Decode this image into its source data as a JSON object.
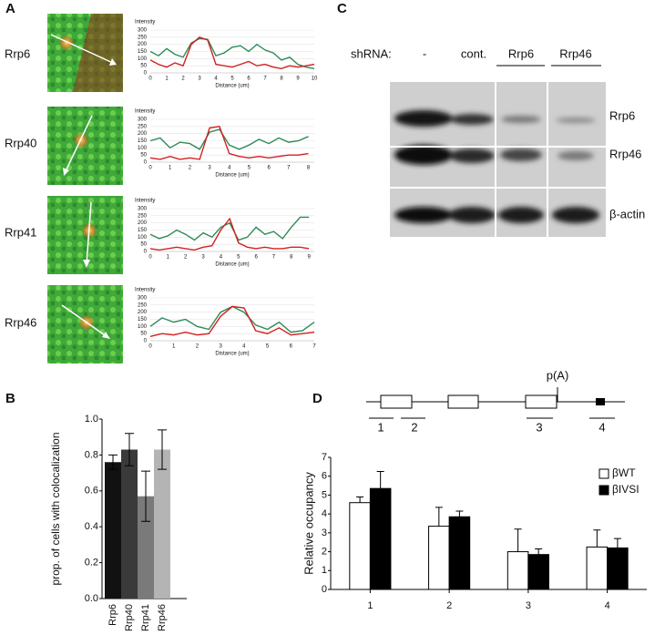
{
  "panel_labels": [
    "A",
    "B",
    "C",
    "D"
  ],
  "panel_a": {
    "rows": [
      "Rrp6",
      "Rrp40",
      "Rrp41",
      "Rrp46"
    ]
  },
  "panel_c": {
    "header": "shRNA:",
    "lanes": [
      "-",
      "cont.",
      "Rrp6",
      "Rrp46"
    ],
    "rows": [
      "Rrp6",
      "Rrp46",
      "β-actin"
    ]
  },
  "panel_d_diagram": {
    "poly_a": "p(A)",
    "regions": [
      "1",
      "2",
      "3",
      "4"
    ]
  },
  "chart_data": [
    {
      "type": "line",
      "ylabel": "Intensity",
      "xlabel": "Distance (um)",
      "xlim": [
        0,
        10
      ],
      "xticks": [
        0,
        1,
        2,
        3,
        4,
        5,
        6,
        7,
        8,
        9,
        10
      ],
      "ylim": [
        0,
        300
      ],
      "yticks": [
        0,
        50,
        100,
        150,
        200,
        250,
        300
      ],
      "grid": true,
      "x": [
        0,
        0.5,
        1,
        1.5,
        2,
        2.5,
        3,
        3.5,
        4,
        4.5,
        5,
        5.5,
        6,
        6.5,
        7,
        7.5,
        8,
        8.5,
        9,
        9.5,
        10
      ],
      "series": [
        {
          "color": "#2e8b57",
          "values": [
            150,
            120,
            170,
            130,
            110,
            210,
            240,
            235,
            120,
            140,
            180,
            190,
            150,
            200,
            160,
            140,
            90,
            110,
            60,
            40,
            30
          ]
        },
        {
          "color": "#d42020",
          "values": [
            90,
            60,
            40,
            70,
            50,
            200,
            250,
            230,
            60,
            50,
            40,
            60,
            80,
            50,
            60,
            40,
            30,
            50,
            40,
            50,
            60
          ]
        }
      ]
    },
    {
      "type": "line",
      "ylabel": "Intensity",
      "xlabel": "Distance (um)",
      "xlim": [
        0,
        8.3
      ],
      "xticks": [
        0,
        1,
        2,
        3,
        4,
        5,
        6,
        7,
        8
      ],
      "ylim": [
        0,
        300
      ],
      "yticks": [
        0,
        50,
        100,
        150,
        200,
        250,
        300
      ],
      "grid": true,
      "x": [
        0,
        0.5,
        1,
        1.5,
        2,
        2.5,
        3,
        3.5,
        4,
        4.5,
        5,
        5.5,
        6,
        6.5,
        7,
        7.5,
        8
      ],
      "series": [
        {
          "color": "#2e8b57",
          "values": [
            150,
            170,
            100,
            140,
            130,
            90,
            210,
            230,
            120,
            90,
            120,
            160,
            130,
            170,
            140,
            150,
            180
          ]
        },
        {
          "color": "#d42020",
          "values": [
            30,
            20,
            40,
            20,
            30,
            20,
            240,
            250,
            60,
            40,
            30,
            40,
            30,
            40,
            50,
            50,
            60
          ]
        }
      ]
    },
    {
      "type": "line",
      "ylabel": "Intensity",
      "xlabel": "Distance (um)",
      "xlim": [
        0,
        9.3
      ],
      "xticks": [
        0,
        1,
        2,
        3,
        4,
        5,
        6,
        7,
        8,
        9
      ],
      "ylim": [
        0,
        300
      ],
      "yticks": [
        0,
        50,
        100,
        150,
        200,
        250,
        300
      ],
      "grid": true,
      "x": [
        0,
        0.5,
        1,
        1.5,
        2,
        2.5,
        3,
        3.5,
        4,
        4.5,
        5,
        5.5,
        6,
        6.5,
        7,
        7.5,
        8,
        8.5,
        9
      ],
      "series": [
        {
          "color": "#2e8b57",
          "values": [
            120,
            90,
            110,
            150,
            120,
            80,
            130,
            100,
            170,
            200,
            80,
            100,
            170,
            120,
            140,
            90,
            170,
            240,
            240
          ]
        },
        {
          "color": "#d42020",
          "values": [
            20,
            10,
            20,
            30,
            20,
            10,
            30,
            40,
            150,
            230,
            60,
            30,
            20,
            30,
            20,
            20,
            30,
            30,
            20
          ]
        }
      ]
    },
    {
      "type": "line",
      "ylabel": "Intensity",
      "xlabel": "Distance (um)",
      "xlim": [
        0,
        7
      ],
      "xticks": [
        0,
        1,
        2,
        3,
        4,
        5,
        6,
        7
      ],
      "ylim": [
        0,
        300
      ],
      "yticks": [
        0,
        50,
        100,
        150,
        200,
        250,
        300
      ],
      "grid": true,
      "x": [
        0,
        0.5,
        1,
        1.5,
        2,
        2.5,
        3,
        3.5,
        4,
        4.5,
        5,
        5.5,
        6,
        6.5,
        7
      ],
      "series": [
        {
          "color": "#2e8b57",
          "values": [
            100,
            160,
            130,
            150,
            100,
            80,
            200,
            240,
            200,
            110,
            80,
            130,
            60,
            70,
            130
          ]
        },
        {
          "color": "#d42020",
          "values": [
            30,
            50,
            40,
            60,
            40,
            50,
            170,
            240,
            230,
            70,
            50,
            90,
            40,
            50,
            60
          ]
        }
      ]
    },
    {
      "type": "bar",
      "ylabel": "prop. of cells with colocalization",
      "categories": [
        "Rrp6",
        "Rrp40",
        "Rrp41",
        "Rrp46"
      ],
      "values": [
        0.76,
        0.83,
        0.57,
        0.83
      ],
      "errors": [
        0.04,
        0.09,
        0.14,
        0.11
      ],
      "colors": [
        "#111111",
        "#3a3a3a",
        "#7a7a7a",
        "#b4b4b4"
      ],
      "ylim": [
        0,
        1
      ],
      "yticks": [
        {
          "value": 0,
          "label": "0.0"
        },
        {
          "value": 0.2,
          "label": "0.2"
        },
        {
          "value": 0.4,
          "label": "0.4"
        },
        {
          "value": 0.6,
          "label": "0.6"
        },
        {
          "value": 0.8,
          "label": "0.8"
        },
        {
          "value": 1,
          "label": "1.0"
        }
      ]
    },
    {
      "type": "grouped_bar",
      "ylabel": "Relative occupancy",
      "categories": [
        "1",
        "2",
        "3",
        "4"
      ],
      "legend": "upper right",
      "series": [
        {
          "name": "βWT",
          "color": "#ffffff",
          "values": [
            4.6,
            3.35,
            2.0,
            2.25
          ],
          "errors": [
            0.3,
            1.0,
            1.2,
            0.9
          ]
        },
        {
          "name": "βIVSI",
          "color": "#000000",
          "values": [
            5.35,
            3.85,
            1.85,
            2.2
          ],
          "errors": [
            0.9,
            0.3,
            0.3,
            0.5
          ]
        }
      ],
      "ylim": [
        0,
        7
      ],
      "yticks": [
        0,
        1,
        2,
        3,
        4,
        5,
        6,
        7
      ]
    }
  ]
}
